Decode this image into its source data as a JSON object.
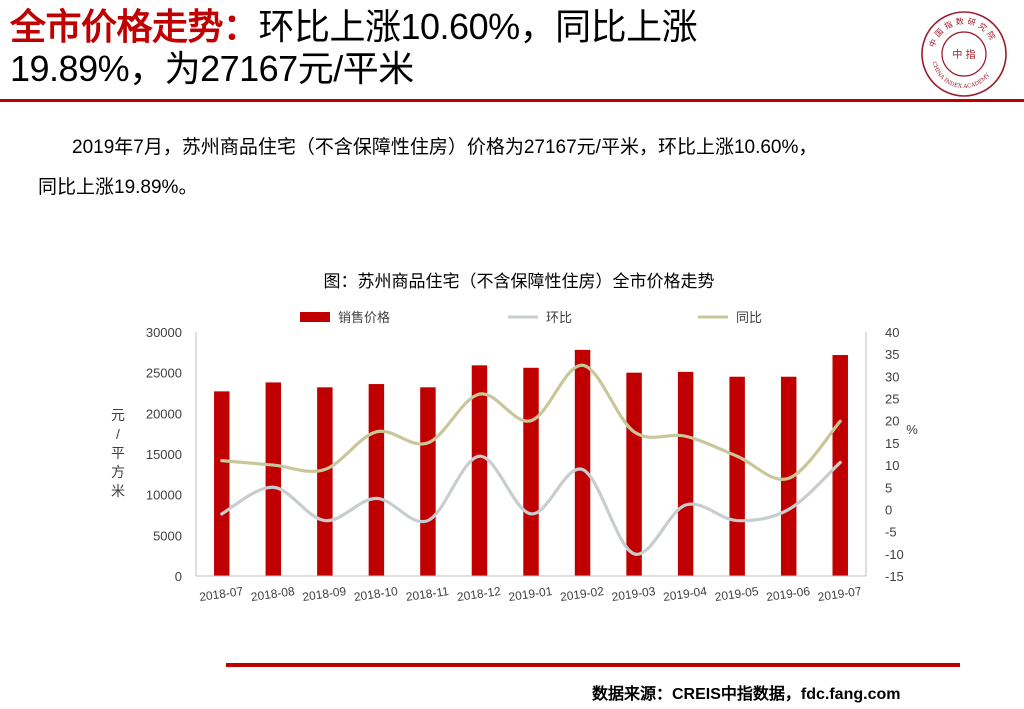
{
  "header": {
    "title_accent": "全市价格走势：",
    "title_rest": "环比上涨10.60%，同比上涨",
    "title_line2": "19.89%，为27167元/平米"
  },
  "logo": {
    "top_text": "中国指数研究院",
    "center_text": "中 指",
    "bottom_text": "CHINA INDEX ACADEMY",
    "color": "#9b1b2a"
  },
  "body": {
    "line1": "2019年7月，苏州商品住宅（不含保障性住房）价格为27167元/平米，环比上涨10.60%，",
    "line2": "同比上涨19.89%。"
  },
  "chart_data": {
    "type": "bar",
    "title": "图：苏州商品住宅（不含保障性住房）全市价格走势",
    "categories": [
      "2018-07",
      "2018-08",
      "2018-09",
      "2018-10",
      "2018-11",
      "2018-12",
      "2019-01",
      "2019-02",
      "2019-03",
      "2019-04",
      "2019-05",
      "2019-06",
      "2019-07"
    ],
    "series": [
      {
        "name": "销售价格",
        "kind": "bar",
        "axis": "left",
        "color": "#c00000",
        "values": [
          22700,
          23800,
          23200,
          23600,
          23200,
          25900,
          25600,
          27800,
          25000,
          25100,
          24500,
          24500,
          27167
        ]
      },
      {
        "name": "环比",
        "kind": "line",
        "axis": "right",
        "color": "#c8cdd0",
        "values": [
          -1,
          5,
          -2.5,
          2.5,
          -2.5,
          12,
          -1,
          9,
          -10,
          1,
          -2.5,
          0,
          10.6
        ]
      },
      {
        "name": "同比",
        "kind": "line",
        "axis": "right",
        "color": "#c9c79a",
        "values": [
          11,
          10,
          9,
          17.5,
          15,
          26,
          20,
          32.5,
          17.5,
          16.5,
          12,
          7,
          19.89
        ]
      }
    ],
    "ylabel": "元/平方米",
    "y2label": "%",
    "ylim": [
      0,
      30000
    ],
    "yticks": [
      "30000",
      "25000",
      "20000",
      "15000",
      "10000",
      "5000",
      "0"
    ],
    "y2lim": [
      -15,
      40
    ],
    "y2ticks": [
      "40",
      "35",
      "30",
      "25",
      "20",
      "15",
      "10",
      "5",
      "0",
      "-5",
      "-10",
      "-15"
    ],
    "legend_position": "top"
  },
  "footer": {
    "source": "数据来源：CREIS中指数据，fdc.fang.com"
  }
}
